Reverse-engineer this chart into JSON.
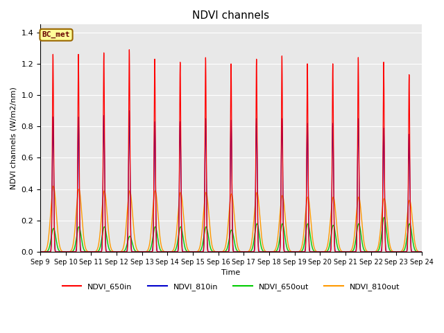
{
  "title": "NDVI channels",
  "ylabel": "NDVI channels (W/m2/nm)",
  "xlabel": "Time",
  "annotation_text": "BC_met",
  "annotation_facecolor": "#ffff99",
  "annotation_edgecolor": "#996600",
  "annotation_textcolor": "#660000",
  "ylim": [
    0,
    1.45
  ],
  "xlim_start": 0,
  "xlim_end": 15,
  "xtick_labels": [
    "Sep 9",
    "Sep 10",
    "Sep 11",
    "Sep 12",
    "Sep 13",
    "Sep 14",
    "Sep 15",
    "Sep 16",
    "Sep 17",
    "Sep 18",
    "Sep 19",
    "Sep 20",
    "Sep 21",
    "Sep 22",
    "Sep 23",
    "Sep 24"
  ],
  "xtick_positions": [
    0,
    1,
    2,
    3,
    4,
    5,
    6,
    7,
    8,
    9,
    10,
    11,
    12,
    13,
    14,
    15
  ],
  "ytick_positions": [
    0.0,
    0.2,
    0.4,
    0.6,
    0.8,
    1.0,
    1.2,
    1.4
  ],
  "series": {
    "NDVI_650in": {
      "color": "#ff0000",
      "label": "NDVI_650in"
    },
    "NDVI_810in": {
      "color": "#0000cc",
      "label": "NDVI_810in"
    },
    "NDVI_650out": {
      "color": "#00cc00",
      "label": "NDVI_650out"
    },
    "NDVI_810out": {
      "color": "#ff9900",
      "label": "NDVI_810out"
    }
  },
  "peak_650in": [
    1.26,
    1.26,
    1.27,
    1.29,
    1.23,
    1.21,
    1.24,
    1.2,
    1.23,
    1.25,
    1.2,
    1.2,
    1.24,
    1.21,
    1.13
  ],
  "peak_810in": [
    0.86,
    0.86,
    0.87,
    0.9,
    0.83,
    0.83,
    0.85,
    0.84,
    0.85,
    0.85,
    0.82,
    0.82,
    0.85,
    0.79,
    0.75
  ],
  "peak_650out": [
    0.15,
    0.16,
    0.16,
    0.1,
    0.16,
    0.16,
    0.16,
    0.14,
    0.18,
    0.18,
    0.18,
    0.17,
    0.18,
    0.22,
    0.18
  ],
  "peak_810out": [
    0.42,
    0.4,
    0.39,
    0.39,
    0.39,
    0.38,
    0.38,
    0.37,
    0.38,
    0.36,
    0.35,
    0.35,
    0.35,
    0.34,
    0.33
  ],
  "background_color": "#e8e8e8",
  "grid_color": "#ffffff",
  "legend_colors": [
    "#ff0000",
    "#0000cc",
    "#00cc00",
    "#ff9900"
  ],
  "legend_labels": [
    "NDVI_650in",
    "NDVI_810in",
    "NDVI_650out",
    "NDVI_810out"
  ],
  "figsize": [
    6.4,
    4.8
  ],
  "dpi": 100
}
